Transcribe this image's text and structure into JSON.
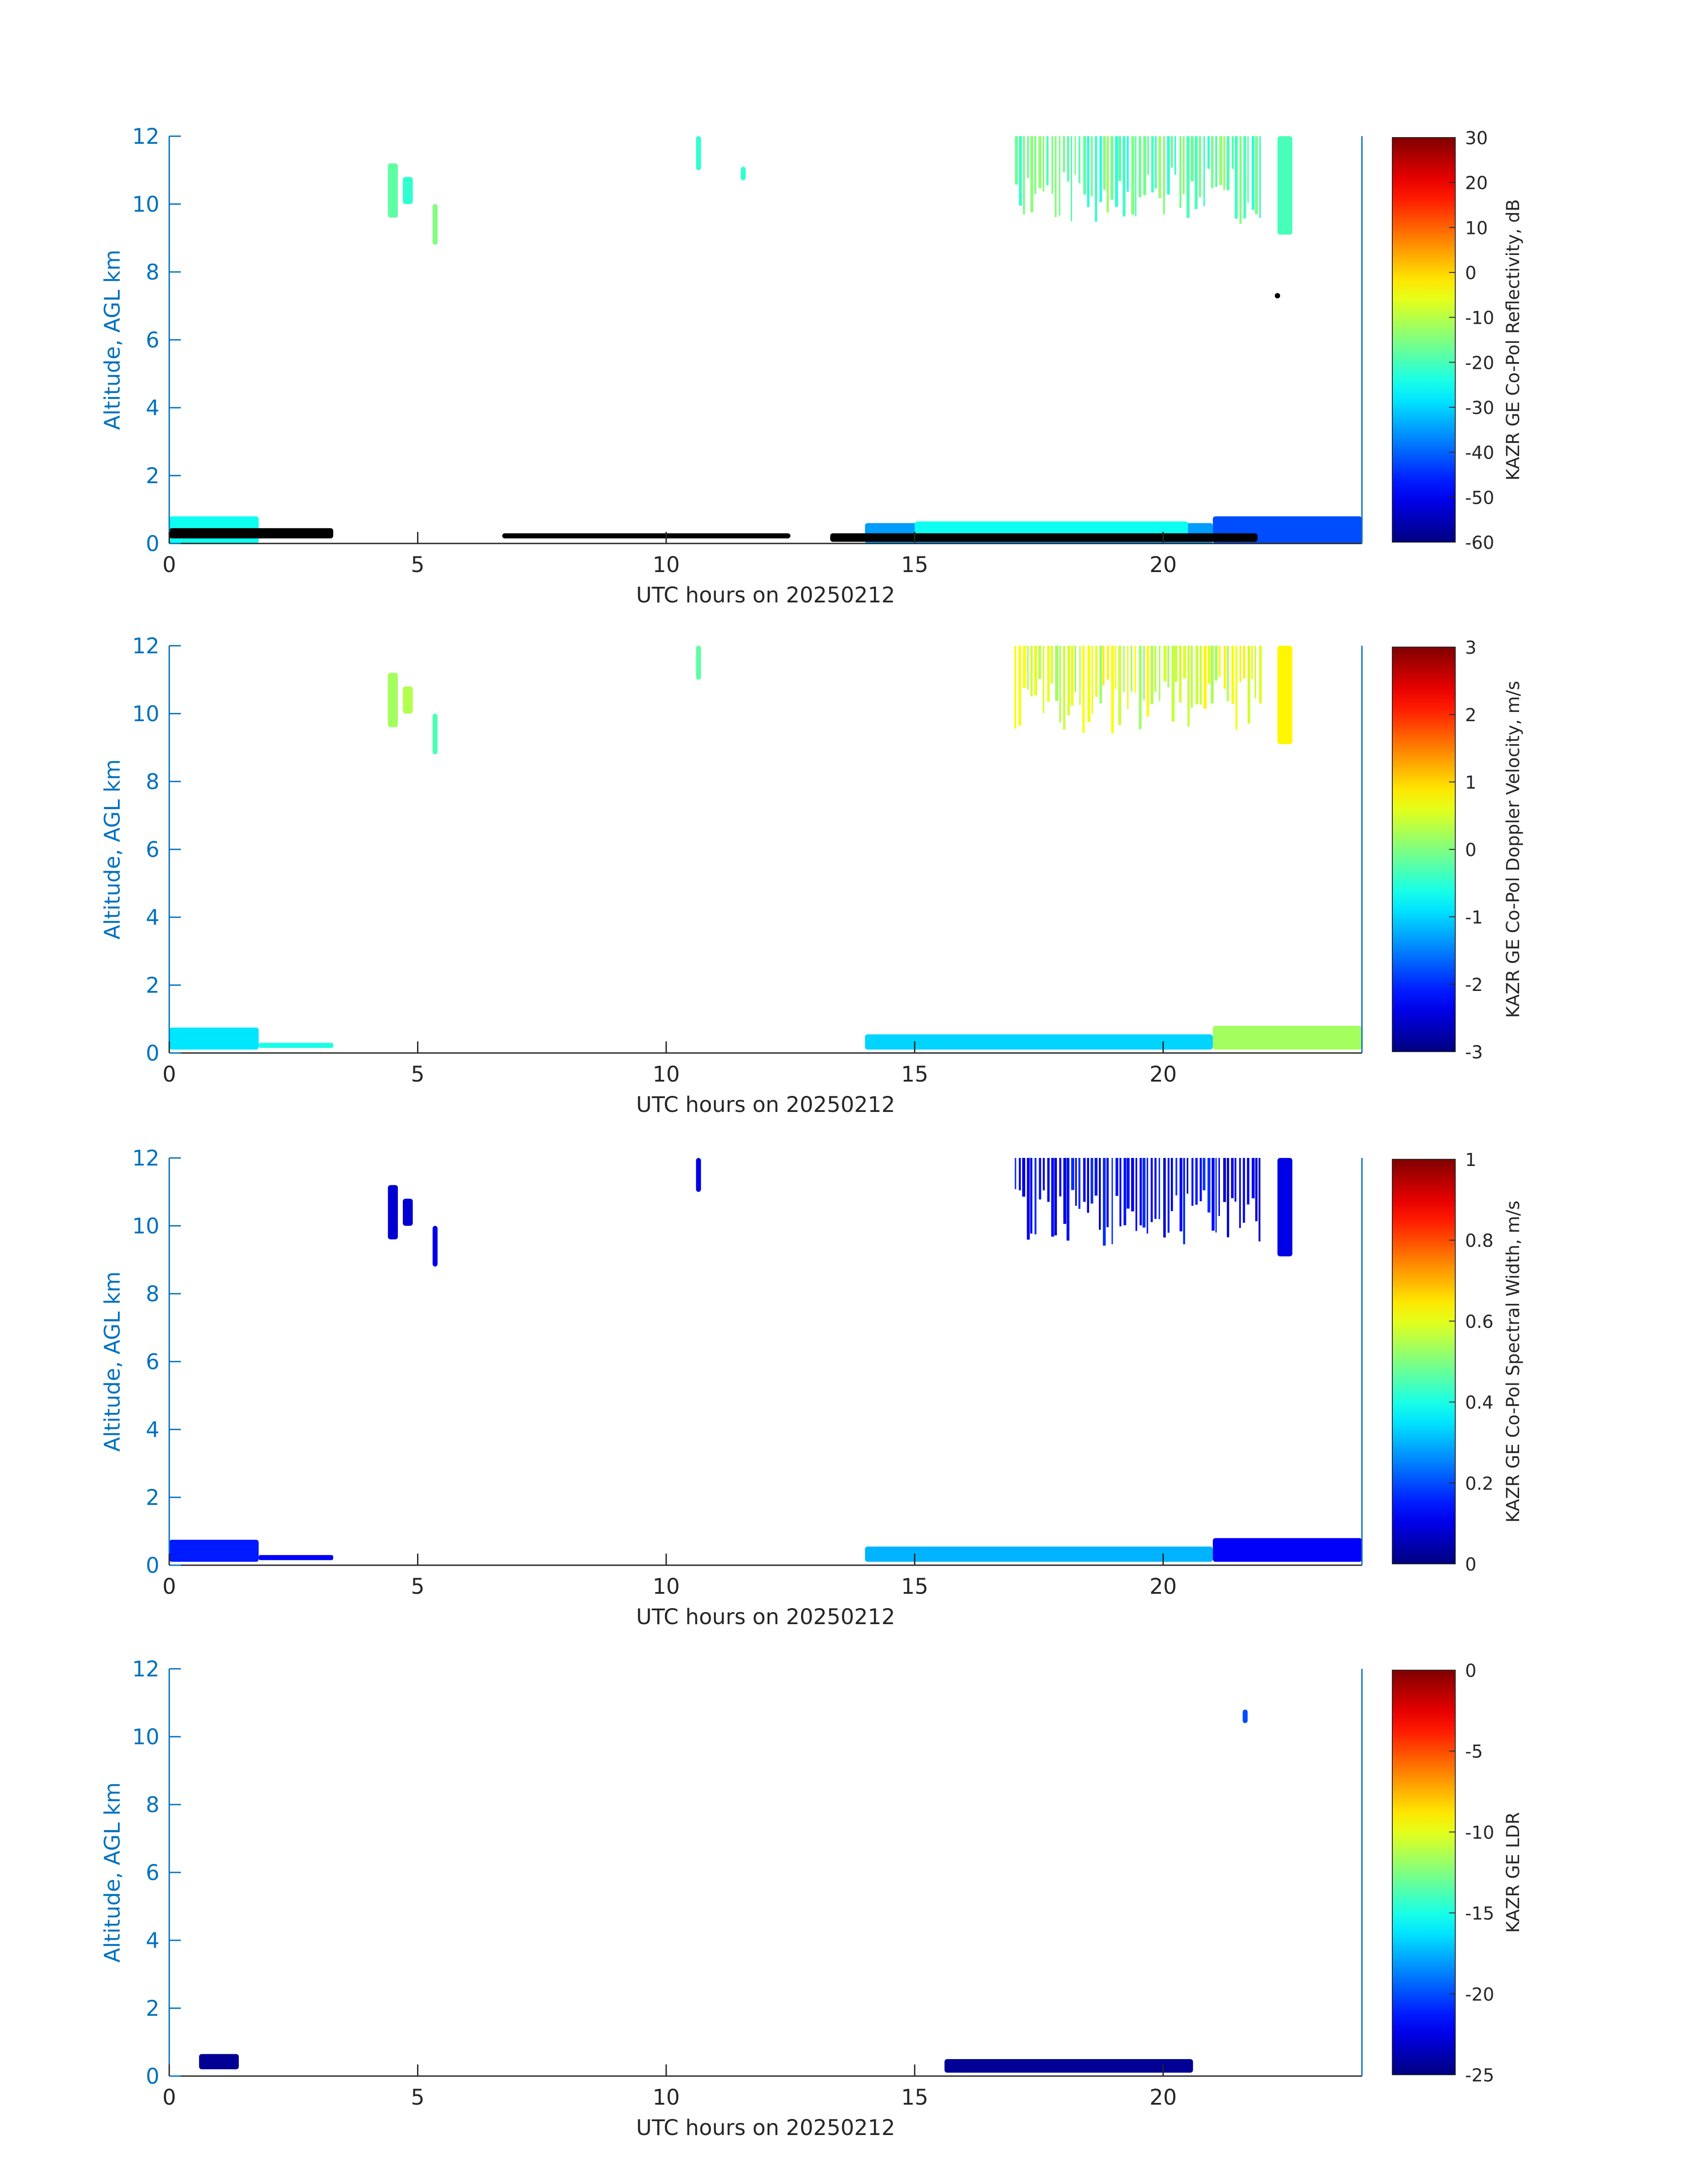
{
  "figure": {
    "background": "#ffffff",
    "axis_color": "#0072bd",
    "tick_label_color": "#0072bd",
    "x_label_color": "#262626",
    "colorbar_text_color": "#262626"
  },
  "chart_data": [
    {
      "type": "heatmap",
      "title": "",
      "xlabel": "UTC hours on 20250212",
      "ylabel": "Altitude, AGL km",
      "xlim": [
        0,
        24
      ],
      "ylim": [
        0,
        12
      ],
      "xticks": [
        "0",
        "5",
        "10",
        "15",
        "20"
      ],
      "yticks": [
        "0",
        "2",
        "4",
        "6",
        "8",
        "10",
        "12"
      ],
      "colormap": "jet",
      "colorbar": {
        "label": "KAZR GE Co-Pol Reflectivity, dB",
        "range": [
          -60,
          30
        ],
        "ticks": [
          "-60",
          "-50",
          "-40",
          "-30",
          "-20",
          "-10",
          "0",
          "10",
          "20",
          "30"
        ]
      },
      "echoes": [
        {
          "x": [
            0.0,
            1.8
          ],
          "y": [
            0.0,
            0.8
          ],
          "value": -25
        },
        {
          "x": [
            4.4,
            4.6
          ],
          "y": [
            9.6,
            11.2
          ],
          "value": -18
        },
        {
          "x": [
            4.7,
            4.9
          ],
          "y": [
            10.0,
            10.8
          ],
          "value": -22
        },
        {
          "x": [
            5.3,
            5.4
          ],
          "y": [
            8.8,
            10.0
          ],
          "value": -15
        },
        {
          "x": [
            10.6,
            10.7
          ],
          "y": [
            11.0,
            12.0
          ],
          "value": -22
        },
        {
          "x": [
            11.5,
            11.6
          ],
          "y": [
            10.7,
            11.1
          ],
          "value": -22
        },
        {
          "x": [
            14.0,
            21.0
          ],
          "y": [
            0.0,
            0.6
          ],
          "value": -35
        },
        {
          "x": [
            15.0,
            20.5
          ],
          "y": [
            0.2,
            0.65
          ],
          "value": -25
        },
        {
          "x": [
            17.0,
            22.0
          ],
          "y": [
            9.4,
            12.0
          ],
          "value": -18
        },
        {
          "x": [
            22.3,
            22.6
          ],
          "y": [
            9.1,
            12.0
          ],
          "value": -20
        },
        {
          "x": [
            21.0,
            24.0
          ],
          "y": [
            0.0,
            0.8
          ],
          "value": -42
        }
      ],
      "black_markers": [
        {
          "x": [
            0.0,
            3.3
          ],
          "y": [
            0.15,
            0.45
          ]
        },
        {
          "x": [
            6.7,
            12.5
          ],
          "y": [
            0.15,
            0.3
          ]
        },
        {
          "x": [
            13.3,
            21.9
          ],
          "y": [
            0.05,
            0.3
          ]
        },
        {
          "x": [
            22.3,
            22.3
          ],
          "y": [
            7.3,
            7.3
          ]
        }
      ]
    },
    {
      "type": "heatmap",
      "title": "",
      "xlabel": "UTC hours on 20250212",
      "ylabel": "Altitude, AGL km",
      "xlim": [
        0,
        24
      ],
      "ylim": [
        0,
        12
      ],
      "xticks": [
        "0",
        "5",
        "10",
        "15",
        "20"
      ],
      "yticks": [
        "0",
        "2",
        "4",
        "6",
        "8",
        "10",
        "12"
      ],
      "colormap": "jet",
      "colorbar": {
        "label": "KAZR GE Co-Pol Doppler Velocity, m/s",
        "range": [
          -3,
          3
        ],
        "ticks": [
          "-3",
          "-2",
          "-1",
          "0",
          "1",
          "2",
          "3"
        ]
      },
      "echoes": [
        {
          "x": [
            0.0,
            1.8
          ],
          "y": [
            0.1,
            0.75
          ],
          "value": -0.9
        },
        {
          "x": [
            1.8,
            3.3
          ],
          "y": [
            0.15,
            0.3
          ],
          "value": -0.6
        },
        {
          "x": [
            4.4,
            4.6
          ],
          "y": [
            9.6,
            11.2
          ],
          "value": 0.2
        },
        {
          "x": [
            4.7,
            4.9
          ],
          "y": [
            10.0,
            10.8
          ],
          "value": 0.3
        },
        {
          "x": [
            5.3,
            5.4
          ],
          "y": [
            8.8,
            10.0
          ],
          "value": -0.3
        },
        {
          "x": [
            10.6,
            10.7
          ],
          "y": [
            11.0,
            12.0
          ],
          "value": -0.2
        },
        {
          "x": [
            14.0,
            21.0
          ],
          "y": [
            0.1,
            0.55
          ],
          "value": -1.0
        },
        {
          "x": [
            17.0,
            22.0
          ],
          "y": [
            9.4,
            12.0
          ],
          "value": 0.5
        },
        {
          "x": [
            22.3,
            22.6
          ],
          "y": [
            9.1,
            12.0
          ],
          "value": 0.8
        },
        {
          "x": [
            21.0,
            24.0
          ],
          "y": [
            0.1,
            0.8
          ],
          "value": 0.2
        }
      ]
    },
    {
      "type": "heatmap",
      "title": "",
      "xlabel": "UTC hours on 20250212",
      "ylabel": "Altitude, AGL km",
      "xlim": [
        0,
        24
      ],
      "ylim": [
        0,
        12
      ],
      "xticks": [
        "0",
        "5",
        "10",
        "15",
        "20"
      ],
      "yticks": [
        "0",
        "2",
        "4",
        "6",
        "8",
        "10",
        "12"
      ],
      "colormap": "jet",
      "colorbar": {
        "label": "KAZR GE Co-Pol Spectral Width, m/s",
        "range": [
          0,
          1
        ],
        "ticks": [
          "0",
          "0.2",
          "0.4",
          "0.6",
          "0.8",
          "1"
        ]
      },
      "echoes": [
        {
          "x": [
            0.0,
            1.8
          ],
          "y": [
            0.1,
            0.75
          ],
          "value": 0.15
        },
        {
          "x": [
            1.8,
            3.3
          ],
          "y": [
            0.15,
            0.3
          ],
          "value": 0.12
        },
        {
          "x": [
            4.4,
            4.6
          ],
          "y": [
            9.6,
            11.2
          ],
          "value": 0.08
        },
        {
          "x": [
            4.7,
            4.9
          ],
          "y": [
            10.0,
            10.8
          ],
          "value": 0.08
        },
        {
          "x": [
            5.3,
            5.4
          ],
          "y": [
            8.8,
            10.0
          ],
          "value": 0.1
        },
        {
          "x": [
            10.6,
            10.7
          ],
          "y": [
            11.0,
            12.0
          ],
          "value": 0.1
        },
        {
          "x": [
            14.0,
            21.0
          ],
          "y": [
            0.1,
            0.55
          ],
          "value": 0.3
        },
        {
          "x": [
            17.0,
            22.0
          ],
          "y": [
            9.4,
            12.0
          ],
          "value": 0.12
        },
        {
          "x": [
            22.3,
            22.6
          ],
          "y": [
            9.1,
            12.0
          ],
          "value": 0.1
        },
        {
          "x": [
            21.0,
            24.0
          ],
          "y": [
            0.1,
            0.8
          ],
          "value": 0.12
        }
      ]
    },
    {
      "type": "heatmap",
      "title": "",
      "xlabel": "UTC hours on 20250212",
      "ylabel": "Altitude, AGL km",
      "xlim": [
        0,
        24
      ],
      "ylim": [
        0,
        12
      ],
      "xticks": [
        "0",
        "5",
        "10",
        "15",
        "20"
      ],
      "yticks": [
        "0",
        "2",
        "4",
        "6",
        "8",
        "10",
        "12"
      ],
      "colormap": "jet",
      "colorbar": {
        "label": "KAZR GE LDR",
        "range": [
          -25,
          0
        ],
        "ticks": [
          "-25",
          "-20",
          "-15",
          "-10",
          "-5",
          "0"
        ]
      },
      "echoes": [
        {
          "x": [
            0.6,
            1.4
          ],
          "y": [
            0.2,
            0.65
          ],
          "value": -24.5
        },
        {
          "x": [
            15.6,
            20.6
          ],
          "y": [
            0.1,
            0.5
          ],
          "value": -24.5
        },
        {
          "x": [
            21.6,
            21.7
          ],
          "y": [
            10.4,
            10.8
          ],
          "value": -20
        }
      ]
    }
  ]
}
